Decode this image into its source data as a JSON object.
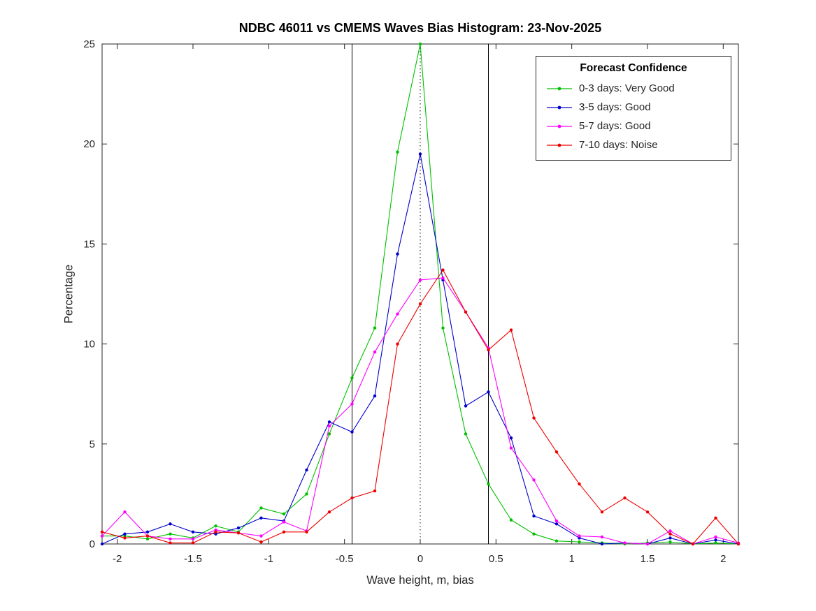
{
  "title": "NDBC 46011 vs CMEMS Waves Bias Histogram: 23-Nov-2025",
  "chart_data": {
    "type": "line",
    "title": "NDBC 46011 vs CMEMS Waves Bias Histogram: 23-Nov-2025",
    "xlabel": "Wave height, m, bias",
    "ylabel": "Percentage",
    "xlim": [
      -2.1,
      2.1
    ],
    "ylim": [
      0,
      25
    ],
    "xticks": [
      -2,
      -1.5,
      -1,
      -0.5,
      0,
      0.5,
      1,
      1.5,
      2
    ],
    "yticks": [
      0,
      5,
      10,
      15,
      20,
      25
    ],
    "grid": false,
    "legend_title": "Forecast Confidence",
    "legend_position": "top-right",
    "axis_color": "#262626",
    "reference_lines": [
      {
        "x": -0.45,
        "style": "solid",
        "color": "#000000"
      },
      {
        "x": 0,
        "style": "dotted",
        "color": "#000000"
      },
      {
        "x": 0.45,
        "style": "solid",
        "color": "#000000"
      }
    ],
    "x": [
      -2.1,
      -1.95,
      -1.8,
      -1.65,
      -1.5,
      -1.35,
      -1.2,
      -1.05,
      -0.9,
      -0.75,
      -0.6,
      -0.45,
      -0.3,
      -0.15,
      0,
      0.15,
      0.3,
      0.45,
      0.6,
      0.75,
      0.9,
      1.05,
      1.2,
      1.35,
      1.5,
      1.65,
      1.8,
      1.95,
      2.1
    ],
    "series": [
      {
        "name": "0-3 days: Very Good",
        "color": "#00c000",
        "values": [
          0.4,
          0.4,
          0.25,
          0.5,
          0.3,
          0.9,
          0.6,
          1.8,
          1.5,
          2.5,
          5.5,
          8.3,
          10.8,
          19.6,
          25,
          10.8,
          5.5,
          3.0,
          1.2,
          0.5,
          0.15,
          0.1,
          0.05,
          0,
          0.05,
          0.1,
          0,
          0.05,
          0
        ]
      },
      {
        "name": "3-5 days: Good",
        "color": "#0000cc",
        "values": [
          0,
          0.5,
          0.6,
          1.0,
          0.6,
          0.5,
          0.8,
          1.3,
          1.15,
          3.7,
          6.1,
          5.6,
          7.4,
          14.5,
          19.5,
          13.2,
          6.9,
          7.6,
          5.3,
          1.4,
          1.0,
          0.3,
          0,
          0.05,
          0,
          0.3,
          0,
          0.2,
          0
        ]
      },
      {
        "name": "5-7 days: Good",
        "color": "#ff00ff",
        "values": [
          0.4,
          1.6,
          0.4,
          0.25,
          0.25,
          0.7,
          0.55,
          0.4,
          1.1,
          0.65,
          5.9,
          7.0,
          9.6,
          11.5,
          13.2,
          13.3,
          11.6,
          9.8,
          4.8,
          3.2,
          1.15,
          0.4,
          0.35,
          0.05,
          0,
          0.65,
          0,
          0.35,
          0.05
        ]
      },
      {
        "name": "7-10 days: Noise",
        "color": "#ee0000",
        "values": [
          0.6,
          0.3,
          0.4,
          0.05,
          0.05,
          0.6,
          0.55,
          0.1,
          0.6,
          0.6,
          1.6,
          2.3,
          2.65,
          10.0,
          12.0,
          13.7,
          11.6,
          9.7,
          10.7,
          6.3,
          4.6,
          3.0,
          1.6,
          2.3,
          1.6,
          0.5,
          0,
          1.3,
          0
        ]
      }
    ]
  }
}
